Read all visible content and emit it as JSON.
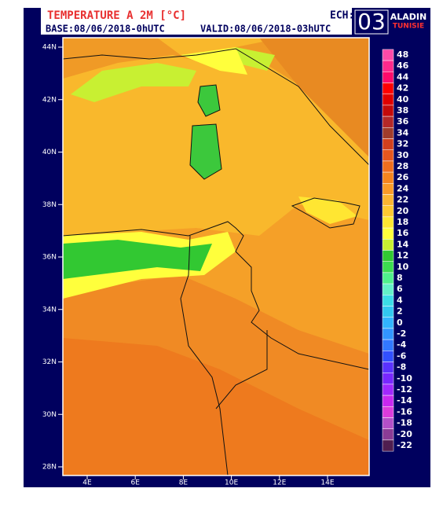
{
  "header": {
    "title": "TEMPERATURE A 2M [°C]",
    "base": "BASE:08/06/2018-0hUTC",
    "valid": "VALID:08/06/2018-03hUTC",
    "ech_label": "ECH:",
    "ech": "03",
    "model": "ALADIN",
    "country": "TUNISIE"
  },
  "map": {
    "lat_ticks": [
      {
        "value": 44,
        "label": "44N"
      },
      {
        "value": 42,
        "label": "42N"
      },
      {
        "value": 40,
        "label": "40N"
      },
      {
        "value": 38,
        "label": "38N"
      },
      {
        "value": 36,
        "label": "36N"
      },
      {
        "value": 34,
        "label": "34N"
      },
      {
        "value": 32,
        "label": "32N"
      },
      {
        "value": 30,
        "label": "30N"
      },
      {
        "value": 28,
        "label": "28N"
      }
    ],
    "lon_ticks": [
      {
        "value": 4,
        "label": "4E"
      },
      {
        "value": 6,
        "label": "6E"
      },
      {
        "value": 8,
        "label": "8E"
      },
      {
        "value": 10,
        "label": "10E"
      },
      {
        "value": 12,
        "label": "12E"
      },
      {
        "value": 14,
        "label": "14E"
      }
    ]
  },
  "colorbar": {
    "values": [
      48,
      46,
      44,
      42,
      40,
      38,
      36,
      34,
      32,
      30,
      28,
      26,
      24,
      22,
      20,
      18,
      16,
      14,
      12,
      10,
      8,
      6,
      4,
      2,
      0,
      -2,
      -4,
      -6,
      -8,
      -10,
      -12,
      -14,
      -16,
      -18,
      -20,
      -22
    ],
    "colors": [
      "#ff4aa8",
      "#ff2a8c",
      "#ff0a6a",
      "#ff0000",
      "#e00000",
      "#c40a0a",
      "#b42828",
      "#a03c2c",
      "#d2401e",
      "#e6561e",
      "#f06e1e",
      "#f5841e",
      "#fa9a28",
      "#fbb432",
      "#ffc832",
      "#ffe632",
      "#ffff3c",
      "#c8f032",
      "#32c832",
      "#3cdc50",
      "#50f08c",
      "#64f0c8",
      "#3cdce6",
      "#32c8f0",
      "#32b4ff",
      "#3296ff",
      "#3278ff",
      "#3250ff",
      "#5a32ff",
      "#7828ff",
      "#a028ff",
      "#c828f0",
      "#dc3cdc",
      "#b450c8",
      "#8c3c96",
      "#501e50"
    ]
  }
}
